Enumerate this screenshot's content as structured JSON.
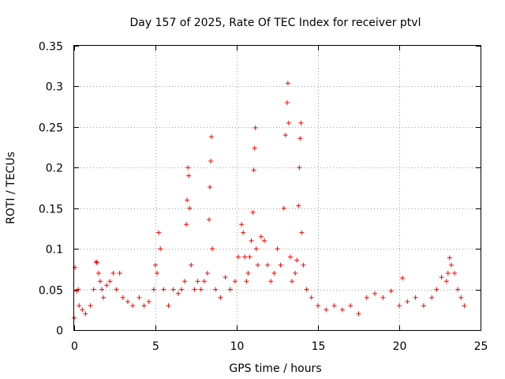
{
  "chart_data": {
    "type": "scatter",
    "title": "Day 157 of 2025, Rate Of TEC Index for receiver ptvl",
    "xlabel": "GPS time / hours",
    "ylabel": "ROTI / TECUs",
    "xlim": [
      0,
      25
    ],
    "ylim": [
      0,
      0.35
    ],
    "xticks": [
      0,
      5,
      10,
      15,
      20,
      25
    ],
    "xtick_labels": [
      "0",
      "5",
      "10",
      "15",
      "20",
      "25"
    ],
    "yticks": [
      0,
      0.05,
      0.1,
      0.15,
      0.2,
      0.25,
      0.3,
      0.35
    ],
    "ytick_labels": [
      "0",
      "0.05",
      "0.1",
      "0.15",
      "0.2",
      "0.25",
      "0.3",
      "0.35"
    ],
    "grid": true,
    "marker": "+",
    "color": "#ff0000",
    "series": [
      {
        "name": "ROTI",
        "x": [
          0.0,
          0.05,
          0.15,
          0.25,
          0.3,
          0.5,
          0.7,
          1.0,
          1.2,
          1.35,
          1.4,
          1.5,
          1.6,
          1.7,
          1.8,
          2.0,
          2.2,
          2.4,
          2.6,
          2.8,
          3.0,
          3.3,
          3.6,
          4.0,
          4.3,
          4.6,
          4.9,
          5.0,
          5.1,
          5.2,
          5.3,
          5.5,
          5.8,
          6.1,
          6.4,
          6.6,
          6.8,
          6.9,
          6.95,
          7.0,
          7.05,
          7.1,
          7.2,
          7.4,
          7.6,
          7.8,
          8.0,
          8.2,
          8.3,
          8.35,
          8.4,
          8.45,
          8.5,
          8.7,
          9.0,
          9.3,
          9.6,
          9.9,
          10.1,
          10.3,
          10.4,
          10.5,
          10.6,
          10.7,
          10.8,
          10.9,
          11.0,
          11.05,
          11.1,
          11.15,
          11.2,
          11.3,
          11.5,
          11.7,
          11.9,
          12.1,
          12.3,
          12.5,
          12.7,
          12.9,
          13.0,
          13.1,
          13.15,
          13.2,
          13.3,
          13.4,
          13.6,
          13.7,
          13.8,
          13.85,
          13.9,
          13.95,
          14.0,
          14.1,
          14.3,
          14.6,
          15.0,
          15.5,
          16.0,
          16.5,
          17.0,
          17.5,
          18.0,
          18.5,
          19.0,
          19.5,
          20.0,
          20.2,
          20.5,
          21.0,
          21.5,
          22.0,
          22.3,
          22.6,
          22.9,
          23.0,
          23.1,
          23.2,
          23.4,
          23.6,
          23.8,
          24.0
        ],
        "y": [
          0.015,
          0.077,
          0.048,
          0.05,
          0.03,
          0.025,
          0.02,
          0.03,
          0.05,
          0.084,
          0.083,
          0.07,
          0.06,
          0.05,
          0.04,
          0.055,
          0.06,
          0.07,
          0.05,
          0.07,
          0.04,
          0.035,
          0.03,
          0.04,
          0.03,
          0.035,
          0.05,
          0.08,
          0.07,
          0.12,
          0.1,
          0.05,
          0.03,
          0.05,
          0.045,
          0.05,
          0.06,
          0.13,
          0.16,
          0.2,
          0.19,
          0.15,
          0.08,
          0.05,
          0.06,
          0.05,
          0.06,
          0.07,
          0.136,
          0.176,
          0.208,
          0.238,
          0.1,
          0.05,
          0.04,
          0.065,
          0.05,
          0.06,
          0.09,
          0.13,
          0.12,
          0.09,
          0.06,
          0.07,
          0.09,
          0.11,
          0.145,
          0.197,
          0.224,
          0.249,
          0.1,
          0.08,
          0.115,
          0.11,
          0.08,
          0.06,
          0.07,
          0.1,
          0.08,
          0.15,
          0.24,
          0.28,
          0.304,
          0.255,
          0.09,
          0.06,
          0.07,
          0.086,
          0.153,
          0.2,
          0.236,
          0.255,
          0.12,
          0.08,
          0.05,
          0.04,
          0.03,
          0.025,
          0.03,
          0.025,
          0.03,
          0.02,
          0.04,
          0.045,
          0.04,
          0.048,
          0.03,
          0.064,
          0.035,
          0.04,
          0.03,
          0.04,
          0.05,
          0.065,
          0.06,
          0.07,
          0.089,
          0.08,
          0.07,
          0.05,
          0.04,
          0.03
        ]
      }
    ]
  }
}
